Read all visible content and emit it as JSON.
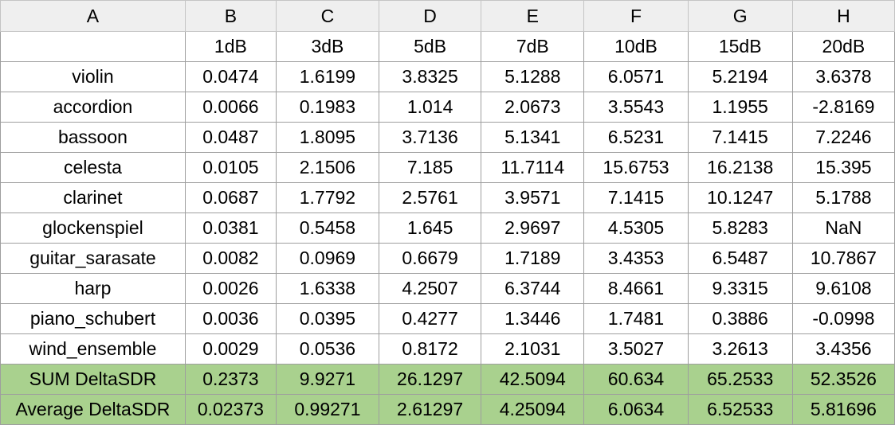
{
  "columns": [
    "A",
    "B",
    "C",
    "D",
    "E",
    "F",
    "G",
    "H"
  ],
  "header_row": [
    "",
    "1dB",
    "3dB",
    "5dB",
    "7dB",
    "10dB",
    "15dB",
    "20dB"
  ],
  "rows": [
    [
      "violin",
      "0.0474",
      "1.6199",
      "3.8325",
      "5.1288",
      "6.0571",
      "5.2194",
      "3.6378"
    ],
    [
      "accordion",
      "0.0066",
      "0.1983",
      "1.014",
      "2.0673",
      "3.5543",
      "1.1955",
      "-2.8169"
    ],
    [
      "bassoon",
      "0.0487",
      "1.8095",
      "3.7136",
      "5.1341",
      "6.5231",
      "7.1415",
      "7.2246"
    ],
    [
      "celesta",
      "0.0105",
      "2.1506",
      "7.185",
      "11.7114",
      "15.6753",
      "16.2138",
      "15.395"
    ],
    [
      "clarinet",
      "0.0687",
      "1.7792",
      "2.5761",
      "3.9571",
      "7.1415",
      "10.1247",
      "5.1788"
    ],
    [
      "glockenspiel",
      "0.0381",
      "0.5458",
      "1.645",
      "2.9697",
      "4.5305",
      "5.8283",
      "NaN"
    ],
    [
      "guitar_sarasate",
      "0.0082",
      "0.0969",
      "0.6679",
      "1.7189",
      "3.4353",
      "6.5487",
      "10.7867"
    ],
    [
      "harp",
      "0.0026",
      "1.6338",
      "4.2507",
      "6.3744",
      "8.4661",
      "9.3315",
      "9.6108"
    ],
    [
      "piano_schubert",
      "0.0036",
      "0.0395",
      "0.4277",
      "1.3446",
      "1.7481",
      "0.3886",
      "-0.0998"
    ],
    [
      "wind_ensemble",
      "0.0029",
      "0.0536",
      "0.8172",
      "2.1031",
      "3.5027",
      "3.2613",
      "3.4356"
    ]
  ],
  "summary_rows": [
    [
      "SUM DeltaSDR",
      "0.2373",
      "9.9271",
      "26.1297",
      "42.5094",
      "60.634",
      "65.2533",
      "52.3526"
    ],
    [
      "Average DeltaSDR",
      "0.02373",
      "0.99271",
      "2.61297",
      "4.25094",
      "6.0634",
      "6.52533",
      "5.81696"
    ]
  ],
  "colors": {
    "summary_fill": "#a9d18e",
    "header_fill": "#efefef",
    "grid_line": "#9e9e9e"
  }
}
